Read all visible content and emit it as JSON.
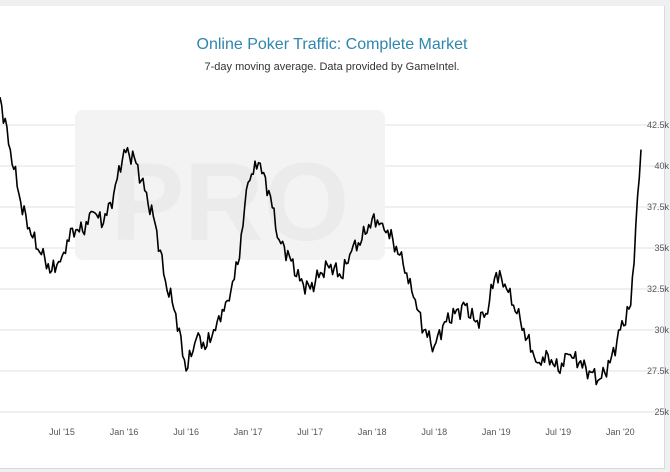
{
  "chart_data": {
    "type": "line",
    "title": "Online Poker Traffic: Complete Market",
    "subtitle": "7-day moving average. Data provided by GameIntel.",
    "xlabel": "",
    "ylabel": "",
    "x_ticks": [
      "Jul '15",
      "Jan '16",
      "Jul '16",
      "Jan '17",
      "Jul '17",
      "Jan '18",
      "Jul '18",
      "Jan '19",
      "Jul '19",
      "Jan '20"
    ],
    "y_ticks": [
      "25k",
      "27.5k",
      "30k",
      "32.5k",
      "35k",
      "37.5k",
      "40k",
      "42.5k"
    ],
    "ylim": [
      25000,
      45000
    ],
    "xlim": [
      "2015-01",
      "2020-03"
    ],
    "grid": true,
    "legend": "none",
    "watermark": "PRO",
    "line_color": "#000000",
    "series": [
      {
        "x": [
          "2015-01",
          "2015-02",
          "2015-03",
          "2015-04",
          "2015-05",
          "2015-06",
          "2015-07",
          "2015-08",
          "2015-09",
          "2015-10",
          "2015-11",
          "2015-12",
          "2016-01",
          "2016-02",
          "2016-03",
          "2016-04",
          "2016-05",
          "2016-06",
          "2016-07",
          "2016-08",
          "2016-09",
          "2016-10",
          "2016-11",
          "2016-12",
          "2017-01",
          "2017-02",
          "2017-03",
          "2017-04",
          "2017-05",
          "2017-06",
          "2017-07",
          "2017-08",
          "2017-09",
          "2017-10",
          "2017-11",
          "2017-12",
          "2018-01",
          "2018-02",
          "2018-03",
          "2018-04",
          "2018-05",
          "2018-06",
          "2018-07",
          "2018-08",
          "2018-09",
          "2018-10",
          "2018-11",
          "2018-12",
          "2019-01",
          "2019-02",
          "2019-03",
          "2019-04",
          "2019-05",
          "2019-06",
          "2019-07",
          "2019-08",
          "2019-09",
          "2019-10",
          "2019-11",
          "2019-12",
          "2020-01",
          "2020-02",
          "2020-03"
        ],
        "values": [
          44200,
          41000,
          37800,
          35800,
          34600,
          33600,
          34500,
          36200,
          36000,
          37200,
          36500,
          38300,
          41000,
          40500,
          38500,
          36500,
          33000,
          31000,
          27500,
          29500,
          29000,
          30500,
          31800,
          34000,
          39000,
          40200,
          38500,
          35500,
          34500,
          33000,
          32500,
          33500,
          34000,
          33200,
          34800,
          35500,
          36800,
          36500,
          35500,
          34000,
          32000,
          30000,
          29000,
          30500,
          31000,
          31500,
          30500,
          31000,
          33500,
          32500,
          31000,
          29500,
          28000,
          28500,
          27500,
          28500,
          28000,
          27500,
          27000,
          28000,
          30000,
          31500,
          41000
        ]
      }
    ]
  }
}
